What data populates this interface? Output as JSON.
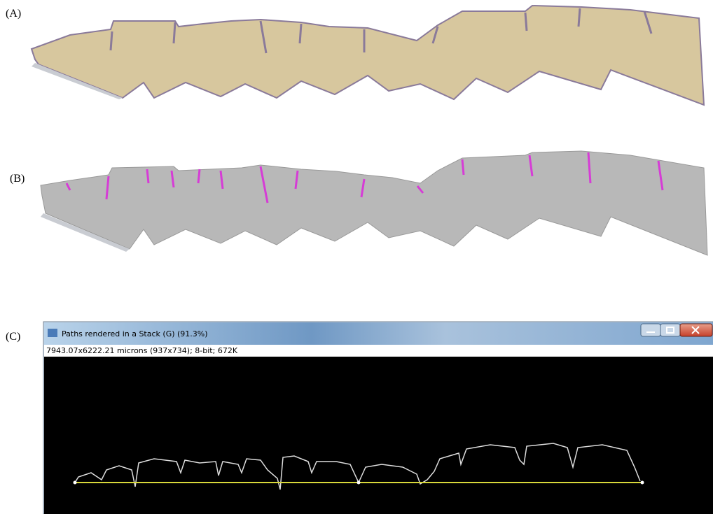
{
  "panels": [
    {
      "label": "(A)"
    },
    {
      "label": "(B)"
    },
    {
      "label": "(C)"
    }
  ],
  "window": {
    "title": "Paths rendered in a Stack (G) (91.3%)",
    "info": "7943.07x6222.21 microns (937x734); 8-bit; 672K"
  }
}
